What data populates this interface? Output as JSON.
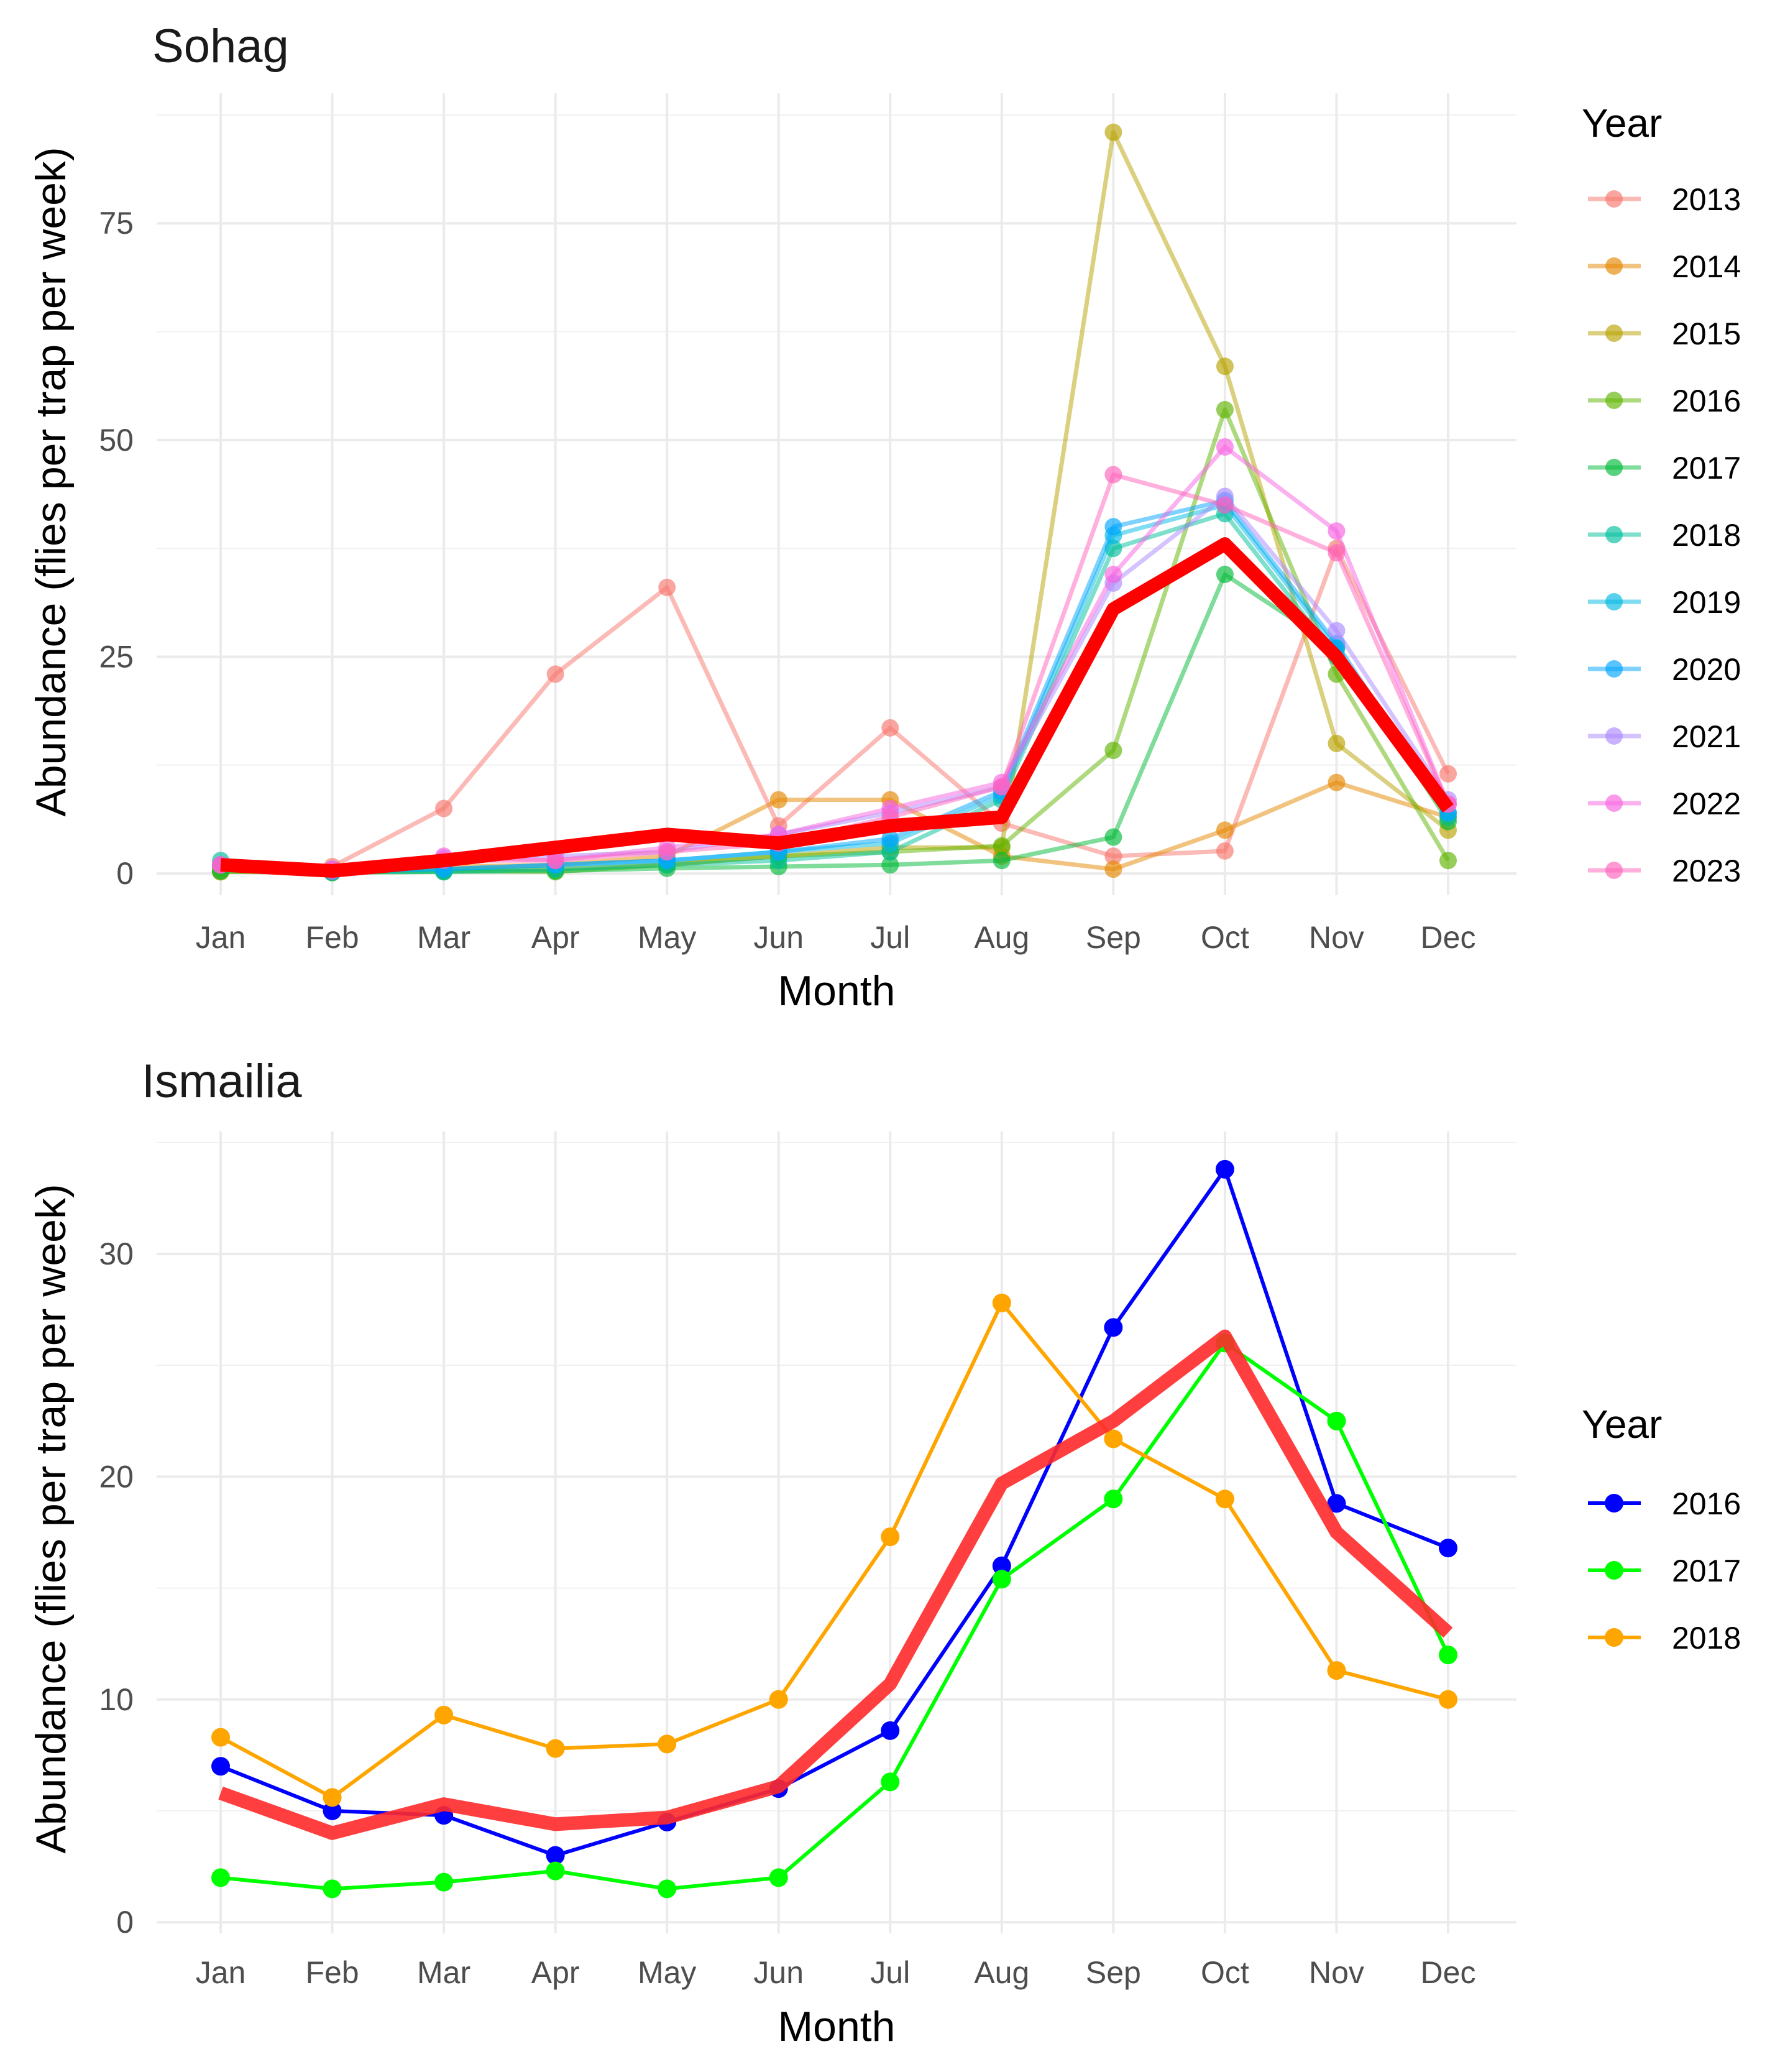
{
  "chart_data": [
    {
      "type": "line",
      "title": "Sohag",
      "xlabel": "Month",
      "ylabel": "Abundance (flies per trap per week)",
      "categories": [
        "Jan",
        "Feb",
        "Mar",
        "Apr",
        "May",
        "Jun",
        "Jul",
        "Aug",
        "Sep",
        "Oct",
        "Nov",
        "Dec"
      ],
      "ylim": [
        -2.5,
        90
      ],
      "yticks": [
        0,
        25,
        50,
        75
      ],
      "grid": true,
      "legend": {
        "title": "Year",
        "position": "right"
      },
      "series": [
        {
          "name": "2013",
          "color": "#F8766D",
          "values": [
            0.8,
            0.8,
            7.5,
            23,
            33,
            5.5,
            16.8,
            5.8,
            2,
            2.6,
            37.5,
            11.5
          ]
        },
        {
          "name": "2014",
          "color": "#E58700",
          "values": [
            0.2,
            0.3,
            0.8,
            1,
            2,
            8.5,
            8.5,
            2,
            0.5,
            5,
            10.5,
            6.5
          ]
        },
        {
          "name": "2015",
          "color": "#B8A200",
          "values": [
            0.5,
            0.3,
            0.5,
            0.5,
            1,
            2,
            3,
            3,
            85.5,
            58.5,
            15,
            5
          ]
        },
        {
          "name": "2016",
          "color": "#5EB300",
          "values": [
            0.2,
            0.1,
            0.3,
            0.2,
            1,
            2,
            2.5,
            3.2,
            14.2,
            53.5,
            23,
            1.5
          ]
        },
        {
          "name": "2017",
          "color": "#00BA38",
          "values": [
            0.3,
            0.1,
            0.2,
            0.3,
            0.6,
            0.8,
            1,
            1.5,
            4.2,
            34.5,
            26,
            6
          ]
        },
        {
          "name": "2018",
          "color": "#00BF9C",
          "values": [
            1.5,
            0.2,
            0.2,
            0.5,
            1,
            1.5,
            2.5,
            8.5,
            37.5,
            41.5,
            25,
            6.5
          ]
        },
        {
          "name": "2019",
          "color": "#00B9E3",
          "values": [
            1,
            0.2,
            0.5,
            1,
            1.5,
            2.5,
            3.5,
            9,
            39,
            42.5,
            26,
            7
          ]
        },
        {
          "name": "2020",
          "color": "#00A5FF",
          "values": [
            1,
            0.2,
            0.5,
            1,
            1.5,
            2.5,
            4,
            9.5,
            40,
            43,
            26.5,
            7
          ]
        },
        {
          "name": "2021",
          "color": "#AC88FF",
          "values": [
            1,
            0.5,
            1.8,
            2,
            2.5,
            4.5,
            7,
            10,
            33.5,
            43.5,
            28,
            8.5
          ]
        },
        {
          "name": "2022",
          "color": "#F763E0",
          "values": [
            1,
            0.5,
            2,
            1.5,
            3,
            4.5,
            7.5,
            10.5,
            34.5,
            49.2,
            39.5,
            8
          ]
        },
        {
          "name": "2023",
          "color": "#FF62BC",
          "values": [
            1,
            0.3,
            1.5,
            1.5,
            2.5,
            3.5,
            6.5,
            10,
            46,
            42.5,
            37,
            8
          ]
        }
      ],
      "mean_line": {
        "name": "Mean",
        "color": "#FF0000",
        "values": [
          1,
          0.3,
          1.5,
          3,
          4.5,
          3.5,
          5.5,
          6.5,
          30.5,
          38,
          25,
          7.5
        ]
      }
    },
    {
      "type": "line",
      "title": "Ismailia",
      "xlabel": "Month",
      "ylabel": "Abundance (flies per trap per week)",
      "categories": [
        "Jan",
        "Feb",
        "Mar",
        "Apr",
        "May",
        "Jun",
        "Jul",
        "Aug",
        "Sep",
        "Oct",
        "Nov",
        "Dec"
      ],
      "ylim": [
        -0.5,
        35.5
      ],
      "yticks": [
        0,
        10,
        20,
        30
      ],
      "grid": true,
      "legend": {
        "title": "Year",
        "position": "right"
      },
      "series": [
        {
          "name": "2016",
          "color": "#0000FF",
          "values": [
            7,
            5,
            4.8,
            3,
            4.5,
            6,
            8.6,
            16,
            26.7,
            33.8,
            18.8,
            16.8
          ]
        },
        {
          "name": "2017",
          "color": "#00FF00",
          "values": [
            2,
            1.5,
            1.8,
            2.3,
            1.5,
            2,
            6.3,
            15.4,
            19,
            26,
            22.5,
            12
          ]
        },
        {
          "name": "2018",
          "color": "#FFA500",
          "values": [
            8.3,
            5.6,
            9.3,
            7.8,
            8,
            10,
            17.3,
            27.8,
            21.7,
            19,
            11.3,
            10
          ]
        }
      ],
      "mean_line": {
        "name": "Mean",
        "color": "#FF2A2A",
        "values": [
          5.8,
          4,
          5.3,
          4.4,
          4.7,
          6.1,
          10.7,
          19.7,
          22.5,
          26.3,
          17.5,
          13
        ]
      }
    }
  ]
}
